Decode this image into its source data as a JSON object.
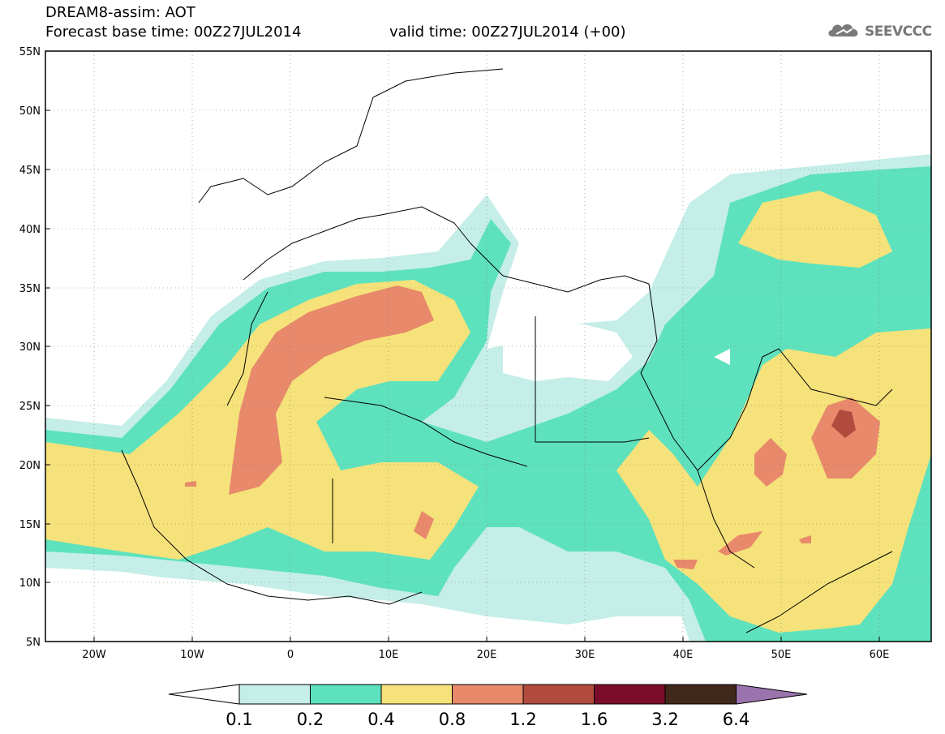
{
  "header": {
    "title": "DREAM8-assim: AOT",
    "base_time": "Forecast base time: 00Z27JUL2014",
    "valid_time": "valid time: 00Z27JUL2014 (+00)"
  },
  "logo": {
    "text": "SEEVCCC",
    "icon": "cloud-icon"
  },
  "map": {
    "lon_range": [
      -25,
      65
    ],
    "lat_range": [
      5,
      55
    ],
    "lat_ticks": [
      {
        "value": 55,
        "label": "55N"
      },
      {
        "value": 50,
        "label": "50N"
      },
      {
        "value": 45,
        "label": "45N"
      },
      {
        "value": 40,
        "label": "40N"
      },
      {
        "value": 35,
        "label": "35N"
      },
      {
        "value": 30,
        "label": "30N"
      },
      {
        "value": 25,
        "label": "25N"
      },
      {
        "value": 20,
        "label": "20N"
      },
      {
        "value": 15,
        "label": "15N"
      },
      {
        "value": 10,
        "label": "10N"
      },
      {
        "value": 5,
        "label": "5N"
      }
    ],
    "lon_ticks": [
      {
        "value": -20,
        "label": "20W"
      },
      {
        "value": -10,
        "label": "10W"
      },
      {
        "value": 0,
        "label": "0"
      },
      {
        "value": 10,
        "label": "10E"
      },
      {
        "value": 20,
        "label": "20E"
      },
      {
        "value": 30,
        "label": "30E"
      },
      {
        "value": 40,
        "label": "40E"
      },
      {
        "value": 50,
        "label": "50E"
      },
      {
        "value": 60,
        "label": "60E"
      }
    ],
    "grid": "dotted"
  },
  "colorbar": {
    "labels": [
      "0.1",
      "0.2",
      "0.4",
      "0.8",
      "1.2",
      "1.6",
      "3.2",
      "6.4"
    ],
    "colors": [
      "#ffffff",
      "#c5eee8",
      "#5ee2bd",
      "#f6e27a",
      "#e7896a",
      "#b04b3e",
      "#7b0d2b",
      "#40281b",
      "#9b73ad"
    ]
  }
}
